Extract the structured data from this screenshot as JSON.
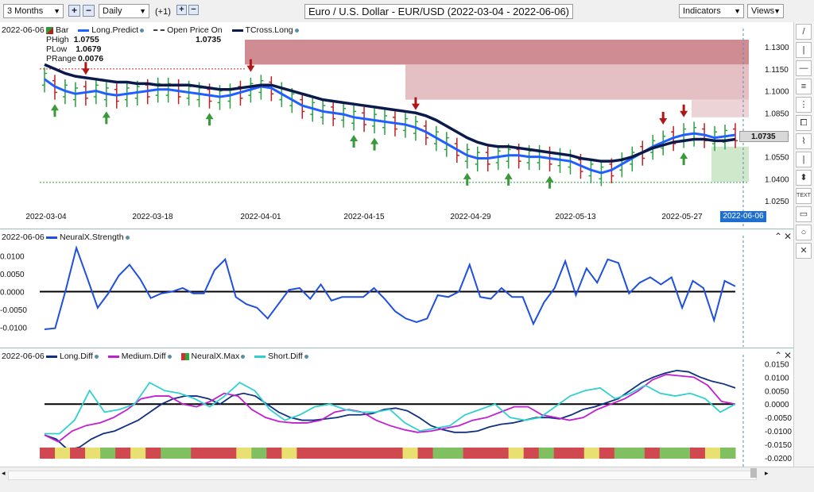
{
  "toolbar": {
    "range": "3 Months",
    "interval": "Daily",
    "offset": "(+1)",
    "title": "Euro / U.S. Dollar - EUR/USD (2022-03-04 - 2022-06-06)",
    "indicators_label": "Indicators",
    "views_label": "Views"
  },
  "icons": [
    "plus-icon",
    "minus-icon",
    "chevron-down-icon",
    "pin-icon",
    "close-icon",
    "line-tool-icon",
    "vertical-line-icon",
    "horizontal-line-icon",
    "multi-line-icon",
    "channel-icon",
    "text-icon",
    "circle-icon",
    "square-icon",
    "zoom-icon"
  ],
  "side_tools": [
    "/",
    "|",
    "—",
    "≡",
    "⋮",
    "⧠",
    "⌇",
    "|",
    "⬍",
    "TEXT",
    "▭",
    "○",
    "✕"
  ],
  "price_pane": {
    "date": "2022-06-06",
    "bar_label": "Bar",
    "legend": [
      {
        "name": "Long.Predict",
        "color": "#1f5fff",
        "style": "solid"
      },
      {
        "name": "Open Price On",
        "color": "#444444",
        "style": "dashed"
      },
      {
        "name": "TCross.Long",
        "color": "#0a1a4a",
        "style": "solid"
      }
    ],
    "phigh_label": "PHigh",
    "phigh": "1.0755",
    "plow_label": "PLow",
    "plow": "1.0679",
    "prange_label": "PRange",
    "prange": "0.0076",
    "open_price_value": "1.0735",
    "last_price_tag": "1.0735",
    "y_ticks": [
      "1.1300",
      "1.1150",
      "1.1000",
      "1.0850",
      "1.0700",
      "1.0550",
      "1.0400",
      "1.0250"
    ],
    "x_ticks": [
      "2022-03-04",
      "2022-03-18",
      "2022-04-01",
      "2022-04-15",
      "2022-04-29",
      "2022-05-13",
      "2022-05-27"
    ],
    "current_date_tag": "2022-06-06"
  },
  "strength_pane": {
    "date": "2022-06-06",
    "legend": [
      {
        "name": "NeuralX.Strength",
        "color": "#1f4fdf"
      }
    ],
    "y_ticks": [
      "0.0100",
      "0.0050",
      "0.0000",
      "-0.0050",
      "-0.0100"
    ]
  },
  "diff_pane": {
    "date": "2022-06-06",
    "legend": [
      {
        "name": "Long.Diff",
        "color": "#103080"
      },
      {
        "name": "Medium.Diff",
        "color": "#c020d0"
      },
      {
        "name": "NeuralX.Max",
        "color": "#d03030"
      },
      {
        "name": "Short.Diff",
        "color": "#30d0d0"
      }
    ],
    "y_ticks": [
      "0.0150",
      "0.0100",
      "0.0050",
      "0.0000",
      "-0.0050",
      "-0.0100",
      "-0.0150",
      "-0.0200"
    ]
  },
  "chart_data": [
    {
      "type": "line",
      "title": "Euro / U.S. Dollar - EUR/USD (2022-03-04 - 2022-06-06)",
      "series": [
        {
          "name": "Long.Predict",
          "values": [
            1.108,
            1.103,
            1.1,
            1.098,
            1.099,
            1.1,
            1.098,
            1.097,
            1.098,
            1.099,
            1.1,
            1.101,
            1.101,
            1.1,
            1.099,
            1.098,
            1.097,
            1.096,
            1.097,
            1.099,
            1.101,
            1.103,
            1.102,
            1.098,
            1.094,
            1.09,
            1.088,
            1.086,
            1.085,
            1.084,
            1.082,
            1.081,
            1.08,
            1.079,
            1.078,
            1.077,
            1.075,
            1.072,
            1.068,
            1.064,
            1.06,
            1.056,
            1.054,
            1.054,
            1.055,
            1.056,
            1.056,
            1.055,
            1.055,
            1.054,
            1.053,
            1.052,
            1.049,
            1.046,
            1.044,
            1.046,
            1.05,
            1.054,
            1.058,
            1.062,
            1.065,
            1.068,
            1.07,
            1.071,
            1.07,
            1.068,
            1.069,
            1.07
          ]
        },
        {
          "name": "TCross.Long",
          "values": [
            1.118,
            1.115,
            1.112,
            1.11,
            1.109,
            1.108,
            1.107,
            1.106,
            1.106,
            1.105,
            1.105,
            1.104,
            1.104,
            1.104,
            1.104,
            1.103,
            1.102,
            1.101,
            1.101,
            1.102,
            1.103,
            1.104,
            1.104,
            1.102,
            1.1,
            1.098,
            1.096,
            1.094,
            1.093,
            1.092,
            1.091,
            1.09,
            1.089,
            1.088,
            1.087,
            1.086,
            1.085,
            1.083,
            1.08,
            1.076,
            1.072,
            1.068,
            1.065,
            1.063,
            1.062,
            1.062,
            1.061,
            1.06,
            1.059,
            1.058,
            1.057,
            1.056,
            1.054,
            1.053,
            1.052,
            1.052,
            1.053,
            1.055,
            1.058,
            1.061,
            1.063,
            1.065,
            1.066,
            1.067,
            1.067,
            1.066,
            1.066,
            1.067
          ]
        }
      ],
      "ylim": [
        1.025,
        1.135
      ],
      "xlabel": "",
      "ylabel": ""
    },
    {
      "type": "line",
      "series": [
        {
          "name": "NeuralX.Strength",
          "values": [
            -0.0105,
            -0.0102,
            0.0005,
            0.0122,
            0.004,
            -0.0045,
            -0.0005,
            0.0045,
            0.0075,
            0.0035,
            -0.0018,
            -0.0005,
            0.0,
            0.001,
            -0.0005,
            -0.0005,
            0.006,
            0.009,
            -0.0015,
            -0.0035,
            -0.0045,
            -0.0075,
            -0.0035,
            0.0005,
            0.001,
            -0.002,
            0.002,
            -0.0025,
            -0.0015,
            -0.0015,
            -0.0015,
            0.001,
            -0.002,
            -0.0055,
            -0.0075,
            -0.0085,
            -0.0075,
            -0.001,
            -0.0015,
            0.0,
            0.0075,
            -0.0015,
            -0.002,
            0.001,
            -0.0015,
            -0.0015,
            -0.009,
            -0.003,
            0.001,
            0.0085,
            -0.001,
            0.0065,
            0.0025,
            0.009,
            0.008,
            -0.0005,
            0.0025,
            0.004,
            0.002,
            0.004,
            -0.0045,
            0.003,
            0.001,
            -0.008,
            0.003,
            0.0015
          ]
        }
      ],
      "ylim": [
        -0.0125,
        0.0125
      ]
    },
    {
      "type": "line",
      "series": [
        {
          "name": "Long.Diff",
          "values": [
            -0.0115,
            -0.013,
            -0.017,
            -0.016,
            -0.013,
            -0.011,
            -0.01,
            -0.008,
            -0.006,
            -0.003,
            0.0,
            0.002,
            0.003,
            0.003,
            0.002,
            0.0,
            0.003,
            0.004,
            0.003,
            0.0,
            -0.003,
            -0.005,
            -0.006,
            -0.006,
            -0.0055,
            -0.005,
            -0.004,
            -0.004,
            -0.0035,
            -0.002,
            -0.0015,
            -0.0025,
            -0.005,
            -0.008,
            -0.0095,
            -0.0105,
            -0.0105,
            -0.01,
            -0.0085,
            -0.0075,
            -0.007,
            -0.006,
            -0.005,
            -0.005,
            -0.0055,
            -0.004,
            -0.002,
            -0.001,
            0.0005,
            0.002,
            0.005,
            0.008,
            0.01,
            0.0115,
            0.0125,
            0.012,
            0.01,
            0.0085,
            0.0075,
            0.006
          ]
        },
        {
          "name": "Medium.Diff",
          "values": [
            -0.0115,
            -0.014,
            -0.01,
            -0.008,
            -0.007,
            -0.005,
            -0.002,
            0.002,
            0.003,
            0.003,
            0.0,
            -0.001,
            0.001,
            0.004,
            0.003,
            -0.002,
            -0.005,
            -0.0065,
            -0.007,
            -0.007,
            -0.006,
            -0.003,
            -0.002,
            -0.003,
            -0.006,
            -0.008,
            -0.0095,
            -0.0105,
            -0.01,
            -0.009,
            -0.008,
            -0.006,
            -0.005,
            -0.003,
            -0.001,
            -0.001,
            -0.004,
            -0.005,
            -0.006,
            -0.005,
            -0.002,
            0.0,
            0.002,
            0.005,
            0.009,
            0.011,
            0.0105,
            0.01,
            0.007,
            0.001,
            0.0
          ]
        },
        {
          "name": "Short.Diff",
          "values": [
            -0.011,
            -0.011,
            -0.006,
            0.005,
            -0.003,
            -0.002,
            0.0,
            0.008,
            0.005,
            0.004,
            0.002,
            -0.001,
            0.003,
            0.008,
            0.005,
            -0.002,
            -0.006,
            -0.004,
            -0.001,
            0.0,
            -0.002,
            -0.003,
            -0.003,
            -0.002,
            -0.007,
            -0.01,
            -0.009,
            -0.008,
            -0.004,
            -0.002,
            0.0,
            -0.005,
            -0.006,
            -0.005,
            -0.001,
            0.003,
            0.005,
            0.006,
            0.002,
            0.004,
            0.007,
            0.004,
            0.003,
            0.004,
            0.002,
            -0.003,
            0.0
          ]
        }
      ],
      "ylim": [
        -0.02,
        0.016
      ]
    }
  ]
}
